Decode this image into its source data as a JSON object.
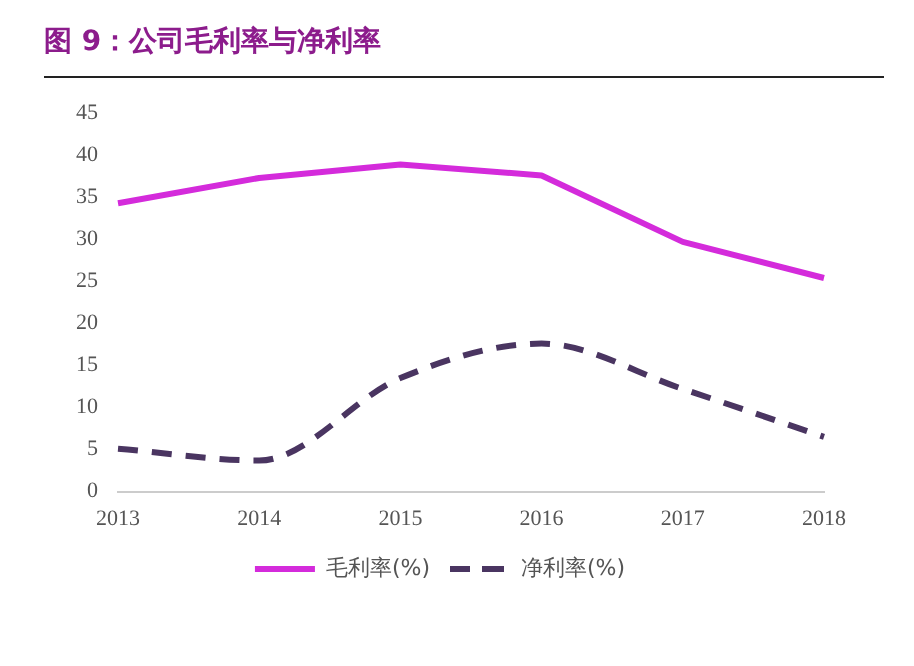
{
  "chart_data": {
    "type": "line",
    "title": "图 9：公司毛利率与净利率",
    "categories": [
      "2013",
      "2014",
      "2015",
      "2016",
      "2017",
      "2018"
    ],
    "series": [
      {
        "name": "毛利率(%)",
        "color": "#d42bdb",
        "values": [
          34.3,
          37.3,
          38.9,
          37.6,
          29.7,
          25.4
        ],
        "line_style": "solid"
      },
      {
        "name": "净利率(%)",
        "color": "#4a3561",
        "values": [
          5.1,
          3.7,
          13.5,
          17.6,
          12.2,
          6.5
        ],
        "line_style": "dashed"
      }
    ],
    "ylim": [
      0,
      45
    ],
    "yticks": [
      0,
      5,
      10,
      15,
      20,
      25,
      30,
      35,
      40,
      45
    ],
    "grid": false,
    "legend": "bottom",
    "marker": "none"
  }
}
